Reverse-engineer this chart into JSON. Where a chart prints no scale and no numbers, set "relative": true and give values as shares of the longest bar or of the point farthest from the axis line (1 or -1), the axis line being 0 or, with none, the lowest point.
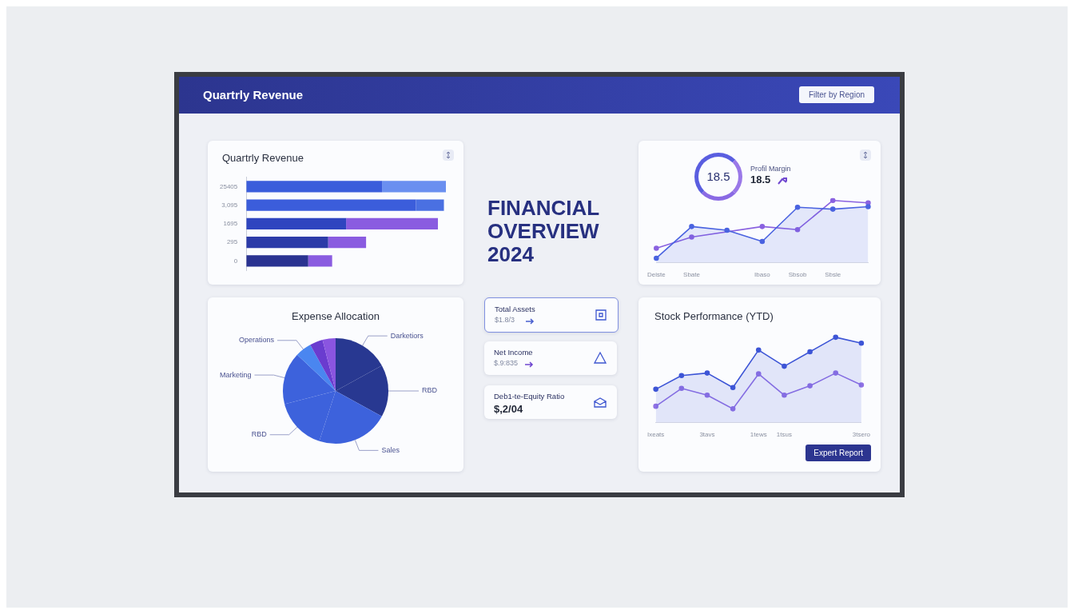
{
  "chart_data": [
    {
      "type": "other",
      "title": "Quartrly Revenue",
      "annotations": [
        "Filter by Region"
      ]
    },
    {
      "type": "bar",
      "title": "Quartrly Revenue",
      "orientation": "horizontal",
      "stacked": true,
      "relative": true,
      "categories": [
        "25405",
        "3,095",
        "1695",
        "295",
        "0"
      ],
      "series": [
        {
          "colors": [
            "#3b5ddb",
            "#3b5ddb",
            "#2f45bf",
            "#2c3ba8",
            "#2a3391"
          ],
          "values": [
            0.68,
            0.85,
            0.5,
            0.41,
            0.31
          ]
        },
        {
          "colors": [
            "#6a8ff0",
            "#4a70e2",
            "#8a5ce0",
            "#8a5ce0",
            "#8a5ce0"
          ],
          "values": [
            0.32,
            0.14,
            0.46,
            0.19,
            0.12
          ]
        }
      ]
    },
    {
      "type": "other",
      "title": "FINANCIAL OVERVIEW 2024",
      "annotations": [
        "Total Assets",
        "$1.8/3",
        "Net Income",
        "$.9:835",
        "Deb1-te-Equity Ratio",
        "$,2/04"
      ]
    },
    {
      "type": "line",
      "annotations": [
        "18.5",
        "Profil Margin",
        "18.5"
      ],
      "relative": true,
      "categories": [
        "Deiste",
        "Sbate",
        null,
        "Ibaso",
        "Sbsob",
        "Sbsle",
        null
      ],
      "marker": "circle",
      "series": [
        {
          "type": "area",
          "color": "#4a63e0",
          "values": [
            0.07,
            0.58,
            0.52,
            0.34,
            0.89,
            0.86,
            0.9
          ]
        },
        {
          "type": "line",
          "color": "#8a62e0",
          "values": [
            0.23,
            0.41,
            null,
            0.58,
            0.53,
            1,
            0.96
          ]
        }
      ]
    },
    {
      "type": "pie",
      "title": "Expense Allocation",
      "categories": [
        "Darketiors",
        "RBD",
        "Sales",
        "RBD",
        "Marketing",
        "Operations",
        null,
        null
      ],
      "values": [
        17,
        16,
        22,
        16,
        16,
        5,
        4,
        4
      ],
      "colors": [
        "#283891",
        "#283891",
        "#3d62dc",
        "#3d62dc",
        "#3d62dc",
        "#4a86f0",
        "#6a3ccf",
        "#8a55e0"
      ]
    },
    {
      "type": "line",
      "title": "Stock Performance (YTD)",
      "annotations": [
        "Expert Report"
      ],
      "relative": true,
      "categories": [
        "Ixeats",
        null,
        "3tavs",
        null,
        "1tews",
        "1tsus",
        null,
        null,
        "3tsero"
      ],
      "marker": "circle",
      "series": [
        {
          "type": "area",
          "color": "#3d55d6",
          "values": [
            0.39,
            0.55,
            0.58,
            0.41,
            0.85,
            0.66,
            0.83,
            1,
            0.93
          ]
        },
        {
          "type": "line",
          "color": "#9072e4",
          "values": [
            0.19,
            0.4,
            0.32,
            0.16,
            0.57,
            0.32,
            0.43,
            0.58,
            0.44
          ]
        }
      ]
    }
  ]
}
